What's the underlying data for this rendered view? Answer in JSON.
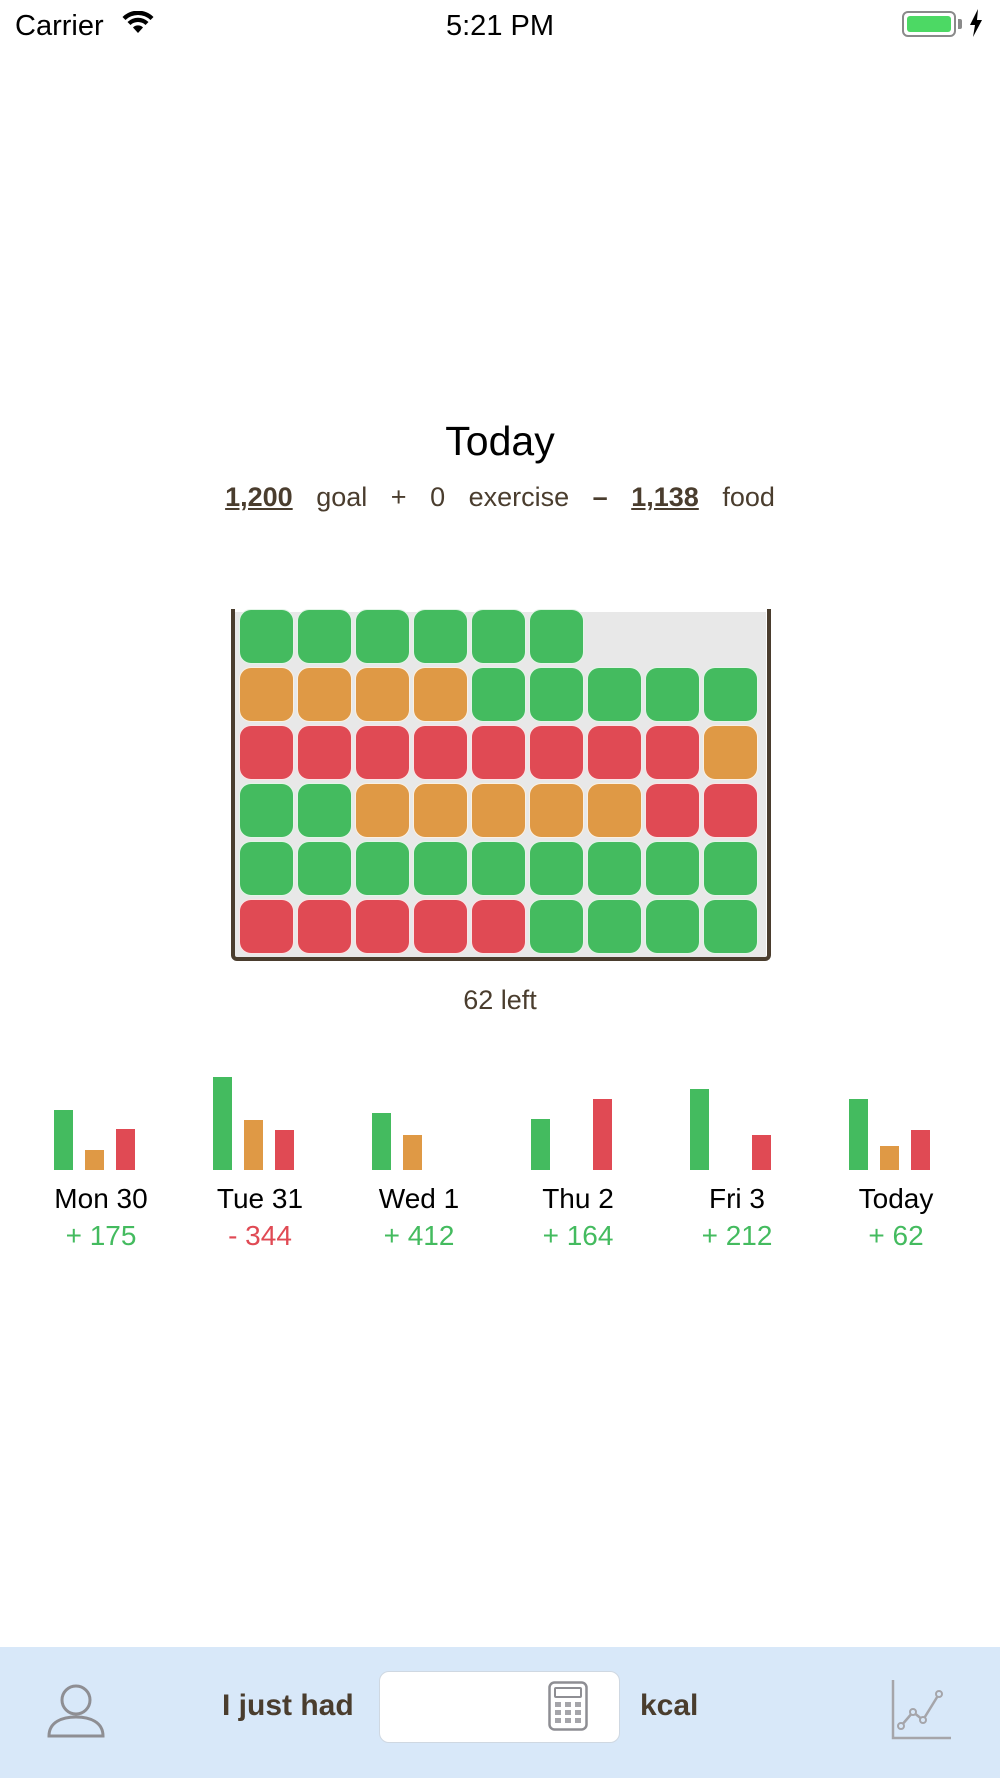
{
  "status": {
    "carrier": "Carrier",
    "time": "5:21 PM"
  },
  "header": {
    "title": "Today",
    "goal_value": "1,200",
    "goal_label": "goal",
    "plus": "+",
    "exercise_value": "0",
    "exercise_label": "exercise",
    "minus": "–",
    "food_value": "1,138",
    "food_label": "food"
  },
  "jar": {
    "left_label": "62 left",
    "colors": {
      "green": "#44bb5f",
      "orange": "#df9945",
      "red": "#e04a54"
    },
    "rows_bottom_to_top": [
      [
        "red",
        "red",
        "red",
        "red",
        "red",
        "green",
        "green",
        "green",
        "green"
      ],
      [
        "green",
        "green",
        "green",
        "green",
        "green",
        "green",
        "green",
        "green",
        "green"
      ],
      [
        "green",
        "green",
        "orange",
        "orange",
        "orange",
        "orange",
        "orange",
        "red",
        "red"
      ],
      [
        "red",
        "red",
        "red",
        "red",
        "red",
        "red",
        "red",
        "red",
        "orange"
      ],
      [
        "orange",
        "orange",
        "orange",
        "orange",
        "green",
        "green",
        "green",
        "green",
        "green"
      ],
      [
        "green",
        "green",
        "green",
        "green",
        "green",
        "green"
      ]
    ]
  },
  "week": {
    "days": [
      {
        "label": "Mon 30",
        "delta": "+ 175",
        "positive": true,
        "bars": {
          "green": 60,
          "orange": 20,
          "red": 41
        }
      },
      {
        "label": "Tue 31",
        "delta": "- 344",
        "positive": false,
        "bars": {
          "green": 93,
          "orange": 50,
          "red": 40
        }
      },
      {
        "label": "Wed 1",
        "delta": "+ 412",
        "positive": true,
        "bars": {
          "green": 57,
          "orange": 35,
          "red": 0
        }
      },
      {
        "label": "Thu 2",
        "delta": "+ 164",
        "positive": true,
        "bars": {
          "green": 51,
          "orange": 0,
          "red": 71
        }
      },
      {
        "label": "Fri 3",
        "delta": "+ 212",
        "positive": true,
        "bars": {
          "green": 81,
          "orange": 0,
          "red": 35
        }
      },
      {
        "label": "Today",
        "delta": "+ 62",
        "positive": true,
        "bars": {
          "green": 71,
          "orange": 24,
          "red": 40
        }
      }
    ]
  },
  "bottom": {
    "prefix": "I just had",
    "input_value": "",
    "suffix": "kcal",
    "profile_icon": "person-icon",
    "calculator_icon": "calculator-icon",
    "graph_icon": "line-graph-icon"
  }
}
